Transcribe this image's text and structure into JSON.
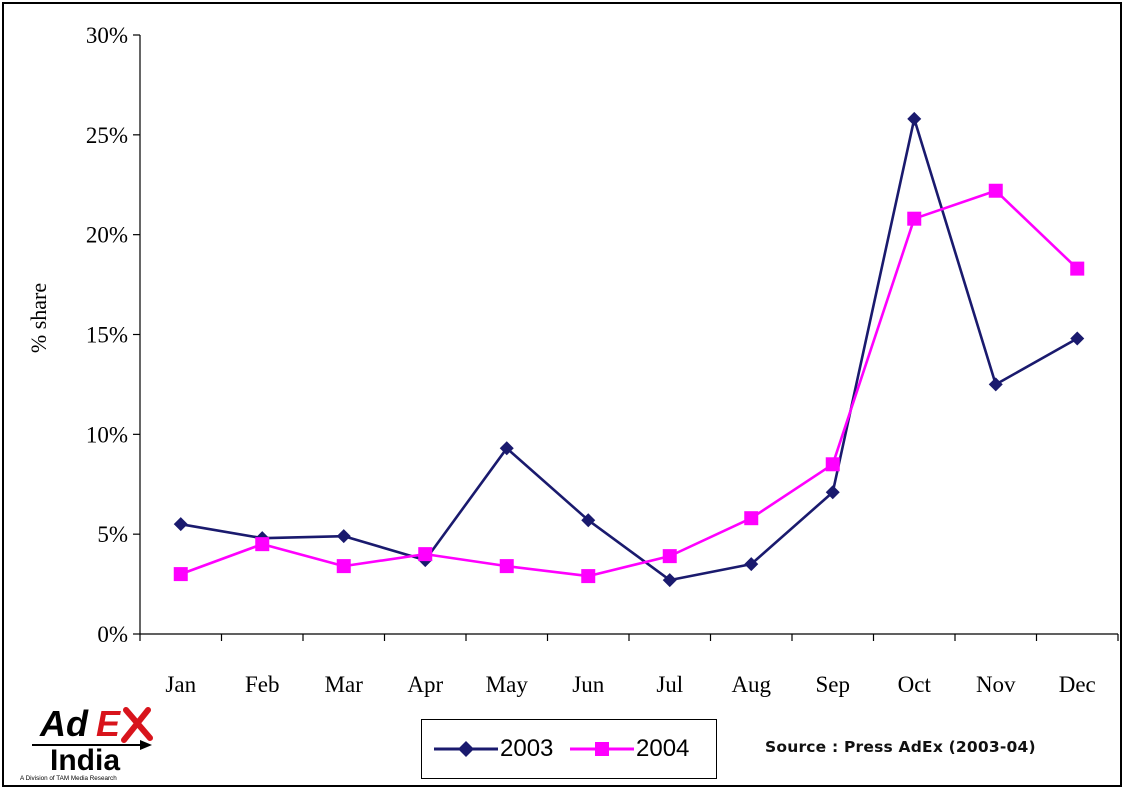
{
  "chart_data": {
    "type": "line",
    "categories": [
      "Jan",
      "Feb",
      "Mar",
      "Apr",
      "May",
      "Jun",
      "Jul",
      "Aug",
      "Sep",
      "Oct",
      "Nov",
      "Dec"
    ],
    "series": [
      {
        "name": "2003",
        "color": "#1a1a6e",
        "marker": "diamond",
        "values": [
          5.5,
          4.8,
          4.9,
          3.7,
          9.3,
          5.7,
          2.7,
          3.5,
          7.1,
          25.8,
          12.5,
          14.8
        ]
      },
      {
        "name": "2004",
        "color": "#ff00ff",
        "marker": "square",
        "values": [
          3.0,
          4.5,
          3.4,
          4.0,
          3.4,
          2.9,
          3.9,
          5.8,
          8.5,
          20.8,
          22.2,
          18.3
        ]
      }
    ],
    "ylabel": "% share",
    "ylim": [
      0,
      30
    ],
    "yticks": [
      "0%",
      "5%",
      "10%",
      "15%",
      "20%",
      "25%",
      "30%"
    ],
    "grid": false,
    "legend_position": "bottom-center"
  },
  "source_text": "Source : Press AdEx (2003-04)",
  "logo": {
    "text_top": "AdEx",
    "text_bottom": "India",
    "tagline": "A Division of TAM Media Research"
  }
}
